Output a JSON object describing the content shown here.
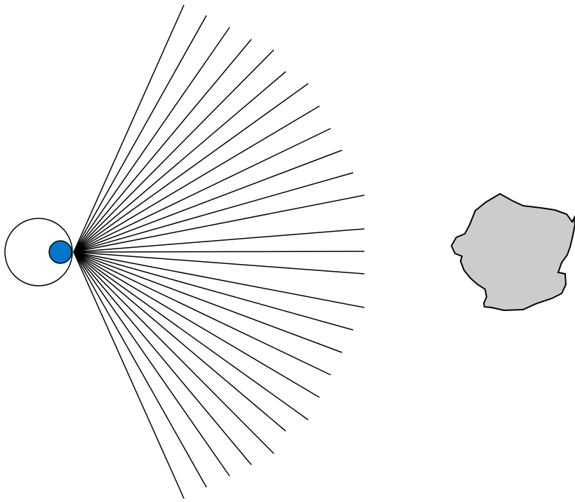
{
  "diagram": {
    "colors": {
      "eye_outline": "#000000",
      "pupil_fill": "#0077cc",
      "ray_stroke": "#000000",
      "object_fill": "#cccccc",
      "object_stroke": "#000000",
      "background": "#ffffff"
    },
    "ray_count": 27
  }
}
